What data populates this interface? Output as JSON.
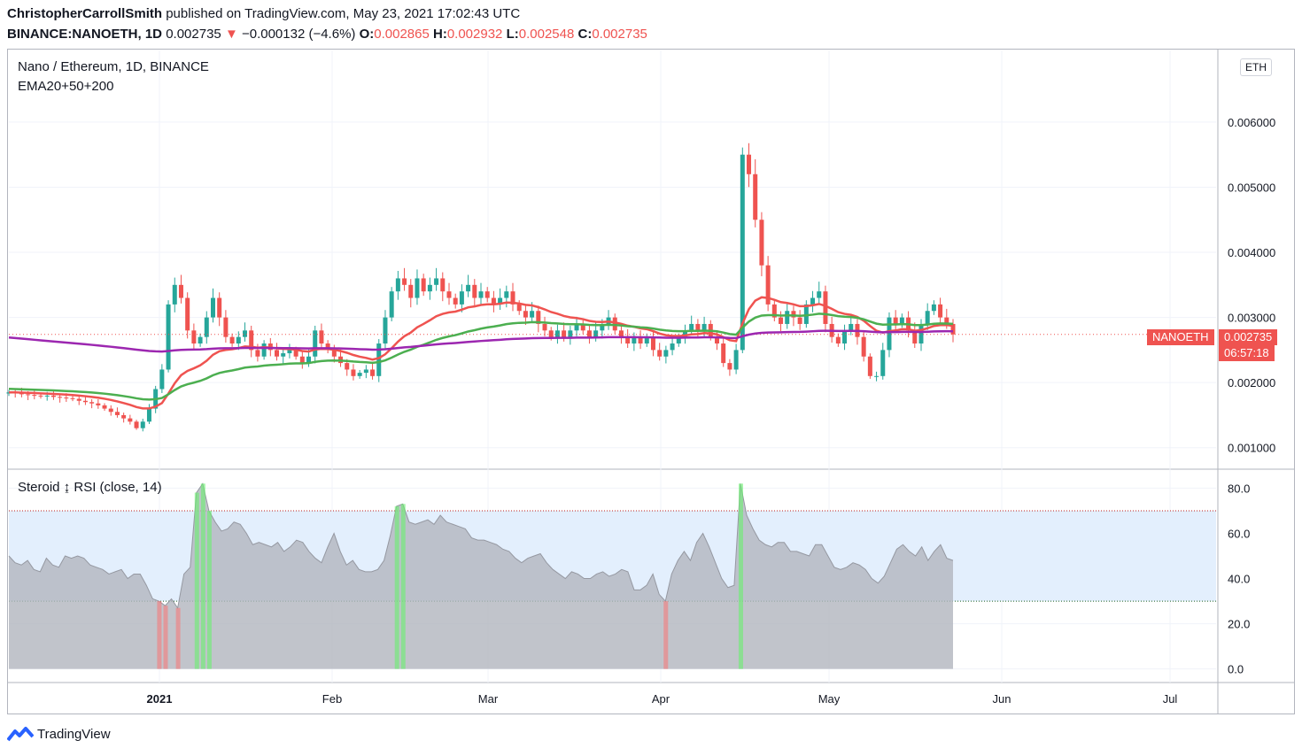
{
  "header": {
    "author": "ChristopherCarrollSmith",
    "published_text": "published on TradingView.com, May 23, 2021 17:02:43 UTC",
    "symbol": "BINANCE:NANOETH, 1D",
    "last": "0.002735",
    "change_arrow": "▼",
    "change": "−0.000132 (−4.6%)",
    "o_label": "O:",
    "o_val": "0.002865",
    "h_label": "H:",
    "h_val": "0.002932",
    "l_label": "L:",
    "l_val": "0.002548",
    "c_label": "C:",
    "c_val": "0.002735"
  },
  "main_pane": {
    "title": "Nano / Ethereum, 1D, BINANCE",
    "indicator": "EMA20+50+200",
    "currency_badge": "ETH",
    "price_tag_symbol": "NANOETH",
    "price_tag_value": "0.002735",
    "price_tag_timer": "06:57:18"
  },
  "rsi_pane": {
    "title": "Steroid ↨ RSI (close, 14)"
  },
  "footer": {
    "brand": "TradingView"
  },
  "colors": {
    "up": "#26a69a",
    "down": "#ef5350",
    "ema20": "#ef5350",
    "ema50": "#4caf50",
    "ema200": "#9c27b0",
    "rsi_fill": "#b2b5be",
    "band": "#e3effd"
  },
  "chart_data": [
    {
      "type": "candlestick",
      "title": "Nano / Ethereum, 1D, BINANCE",
      "x_tick_labels": [
        "2021",
        "Feb",
        "Mar",
        "Apr",
        "May",
        "Jun",
        "Jul"
      ],
      "y_tick_labels": [
        "0.006000",
        "0.005000",
        "0.004000",
        "0.003000",
        "0.002000",
        "0.001000"
      ],
      "ylim": [
        0.00067,
        0.0071
      ],
      "grid": true,
      "close_series": [
        0.00185,
        0.00184,
        0.00182,
        0.00181,
        0.0018,
        0.00179,
        0.0018,
        0.00178,
        0.00177,
        0.00176,
        0.00175,
        0.00172,
        0.0017,
        0.00168,
        0.00165,
        0.0016,
        0.00155,
        0.0015,
        0.00145,
        0.0014,
        0.0013,
        0.0014,
        0.0016,
        0.0019,
        0.0022,
        0.0032,
        0.0035,
        0.0033,
        0.0028,
        0.0026,
        0.0027,
        0.003,
        0.0033,
        0.003,
        0.0027,
        0.0026,
        0.0027,
        0.0028,
        0.0025,
        0.0024,
        0.0026,
        0.0025,
        0.0024,
        0.00245,
        0.0025,
        0.0024,
        0.0023,
        0.0024,
        0.0028,
        0.0026,
        0.0025,
        0.0024,
        0.0023,
        0.0022,
        0.0021,
        0.00215,
        0.0022,
        0.0021,
        0.0026,
        0.003,
        0.0034,
        0.0036,
        0.0035,
        0.0033,
        0.0036,
        0.0034,
        0.0035,
        0.0036,
        0.0034,
        0.0033,
        0.0032,
        0.0034,
        0.0035,
        0.0033,
        0.0034,
        0.0033,
        0.0032,
        0.0033,
        0.0034,
        0.0032,
        0.0031,
        0.003,
        0.0031,
        0.0029,
        0.0028,
        0.0027,
        0.0028,
        0.0027,
        0.0028,
        0.0029,
        0.0028,
        0.0027,
        0.0028,
        0.0029,
        0.003,
        0.0028,
        0.0027,
        0.0026,
        0.0027,
        0.0026,
        0.0027,
        0.0025,
        0.0024,
        0.0025,
        0.0026,
        0.0027,
        0.0028,
        0.0029,
        0.0028,
        0.0029,
        0.0027,
        0.0026,
        0.0023,
        0.0022,
        0.0025,
        0.0055,
        0.0052,
        0.0045,
        0.0038,
        0.0032,
        0.003,
        0.0029,
        0.0031,
        0.003,
        0.0029,
        0.0032,
        0.0033,
        0.0034,
        0.0029,
        0.0027,
        0.0026,
        0.0028,
        0.0029,
        0.0027,
        0.0024,
        0.0021,
        0.0021,
        0.0025,
        0.003,
        0.0029,
        0.003,
        0.0028,
        0.0026,
        0.0029,
        0.0031,
        0.0032,
        0.003,
        0.0029,
        0.00274
      ]
    },
    {
      "type": "area",
      "title": "Steroid ↨ RSI (close, 14)",
      "y_tick_labels": [
        "80.0",
        "60.0",
        "40.0",
        "20.0",
        "0.0"
      ],
      "ylim": [
        -6,
        88
      ],
      "bands": [
        30,
        70
      ],
      "values": [
        50,
        47,
        46,
        48,
        44,
        43,
        49,
        46,
        45,
        50,
        49,
        50,
        49,
        46,
        45,
        44,
        42,
        43,
        44,
        40,
        42,
        42,
        37,
        31,
        30,
        28,
        31,
        27,
        42,
        45,
        78,
        82,
        70,
        65,
        61,
        62,
        65,
        64,
        60,
        55,
        56,
        55,
        54,
        56,
        52,
        54,
        57,
        56,
        52,
        49,
        47,
        54,
        60,
        52,
        46,
        48,
        44,
        43,
        43,
        44,
        48,
        59,
        72,
        73,
        65,
        64,
        65,
        66,
        64,
        68,
        65,
        64,
        63,
        62,
        58,
        57,
        57,
        56,
        55,
        53,
        52,
        49,
        47,
        49,
        50,
        51,
        47,
        44,
        42,
        40,
        43,
        42,
        40,
        40,
        42,
        43,
        41,
        42,
        44,
        43,
        35,
        35,
        37,
        42,
        33,
        30,
        42,
        48,
        52,
        48,
        56,
        60,
        54,
        47,
        40,
        36,
        37,
        82,
        68,
        62,
        57,
        55,
        54,
        56,
        56,
        52,
        52,
        51,
        50,
        55,
        55,
        50,
        45,
        44,
        45,
        47,
        46,
        44,
        40,
        38,
        41,
        47,
        53,
        55,
        52,
        50,
        54,
        48,
        52,
        55,
        49,
        48
      ]
    }
  ]
}
